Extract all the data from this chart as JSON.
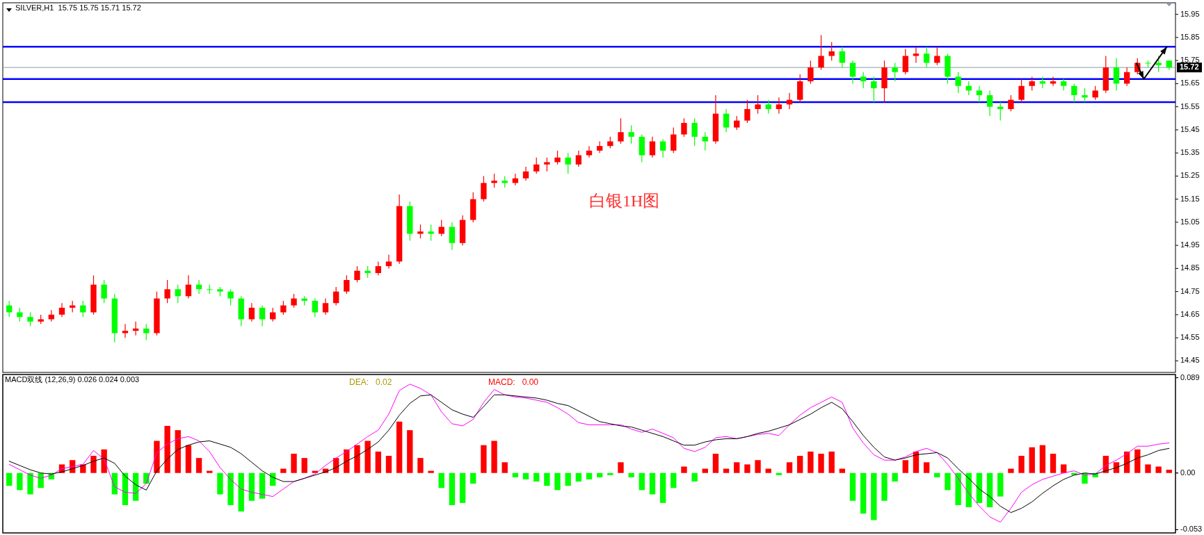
{
  "chart_data": [
    {
      "type": "candlestick",
      "title": "SILVER,H1  15.75 15.75 15.71 15.72",
      "categories": [
        null,
        null,
        null,
        null,
        null,
        null,
        null,
        null,
        null,
        null,
        null,
        null,
        null,
        null,
        null,
        null,
        null,
        null,
        null,
        null,
        null,
        null,
        null,
        null,
        null,
        null,
        null,
        null,
        null,
        null,
        null,
        null,
        null,
        null,
        null,
        null,
        null,
        null,
        null,
        null,
        null,
        null,
        null,
        null,
        null,
        null,
        null,
        null,
        null,
        null,
        null,
        null,
        null,
        null,
        null,
        null,
        null,
        null,
        null,
        null,
        null,
        null,
        null,
        null,
        null,
        null,
        null,
        null,
        null,
        null,
        null,
        null,
        null,
        null,
        null,
        null,
        null,
        null,
        null,
        null,
        null,
        null,
        null,
        null,
        null,
        null,
        null,
        null,
        null,
        null,
        null,
        null,
        null,
        null,
        null,
        null,
        null,
        null,
        null,
        null,
        null,
        null,
        null,
        null,
        null,
        null,
        null,
        null,
        null,
        null,
        null
      ],
      "ohlc": [
        [
          14.69,
          14.71,
          14.64,
          14.66
        ],
        [
          14.66,
          14.68,
          14.62,
          14.64
        ],
        [
          14.64,
          14.66,
          14.6,
          14.62
        ],
        [
          14.62,
          14.65,
          14.61,
          14.63
        ],
        [
          14.63,
          14.67,
          14.62,
          14.65
        ],
        [
          14.65,
          14.7,
          14.64,
          14.68
        ],
        [
          14.68,
          14.71,
          14.66,
          14.69
        ],
        [
          14.69,
          14.71,
          14.64,
          14.66
        ],
        [
          14.66,
          14.82,
          14.65,
          14.78
        ],
        [
          14.78,
          14.8,
          14.7,
          14.72
        ],
        [
          14.72,
          14.74,
          14.53,
          14.57
        ],
        [
          14.57,
          14.61,
          14.55,
          14.58
        ],
        [
          14.58,
          14.62,
          14.56,
          14.59
        ],
        [
          14.59,
          14.61,
          14.54,
          14.57
        ],
        [
          14.57,
          14.75,
          14.56,
          14.72
        ],
        [
          14.72,
          14.8,
          14.7,
          14.76
        ],
        [
          14.76,
          14.78,
          14.7,
          14.73
        ],
        [
          14.73,
          14.82,
          14.72,
          14.78
        ],
        [
          14.78,
          14.8,
          14.74,
          14.76
        ],
        [
          14.76,
          14.78,
          14.74,
          14.76
        ],
        [
          14.76,
          14.77,
          14.73,
          14.75
        ],
        [
          14.75,
          14.76,
          14.69,
          14.72
        ],
        [
          14.72,
          14.73,
          14.6,
          14.63
        ],
        [
          14.63,
          14.7,
          14.62,
          14.68
        ],
        [
          14.68,
          14.69,
          14.6,
          14.63
        ],
        [
          14.63,
          14.68,
          14.62,
          14.66
        ],
        [
          14.66,
          14.71,
          14.65,
          14.69
        ],
        [
          14.69,
          14.74,
          14.68,
          14.72
        ],
        [
          14.72,
          14.73,
          14.69,
          14.71
        ],
        [
          14.71,
          14.72,
          14.64,
          14.66
        ],
        [
          14.66,
          14.72,
          14.65,
          14.7
        ],
        [
          14.7,
          14.77,
          14.69,
          14.75
        ],
        [
          14.75,
          14.82,
          14.74,
          14.8
        ],
        [
          14.8,
          14.86,
          14.79,
          14.84
        ],
        [
          14.84,
          14.86,
          14.81,
          14.83
        ],
        [
          14.83,
          14.88,
          14.82,
          14.86
        ],
        [
          14.86,
          14.91,
          14.85,
          14.88
        ],
        [
          14.88,
          15.17,
          14.87,
          15.12
        ],
        [
          15.12,
          15.14,
          14.97,
          15.0
        ],
        [
          15.0,
          15.04,
          14.98,
          15.01
        ],
        [
          15.01,
          15.04,
          14.97,
          15.0
        ],
        [
          15.0,
          15.06,
          14.99,
          15.03
        ],
        [
          15.03,
          15.05,
          14.93,
          14.96
        ],
        [
          14.96,
          15.08,
          14.95,
          15.06
        ],
        [
          15.06,
          15.18,
          15.05,
          15.15
        ],
        [
          15.15,
          15.25,
          15.14,
          15.22
        ],
        [
          15.22,
          15.26,
          15.2,
          15.23
        ],
        [
          15.23,
          15.25,
          15.2,
          15.22
        ],
        [
          15.22,
          15.26,
          15.21,
          15.24
        ],
        [
          15.24,
          15.29,
          15.23,
          15.27
        ],
        [
          15.27,
          15.33,
          15.26,
          15.3
        ],
        [
          15.3,
          15.33,
          15.27,
          15.31
        ],
        [
          15.31,
          15.36,
          15.3,
          15.33
        ],
        [
          15.33,
          15.35,
          15.26,
          15.3
        ],
        [
          15.3,
          15.36,
          15.29,
          15.34
        ],
        [
          15.34,
          15.38,
          15.33,
          15.36
        ],
        [
          15.36,
          15.4,
          15.35,
          15.38
        ],
        [
          15.38,
          15.42,
          15.37,
          15.4
        ],
        [
          15.4,
          15.5,
          15.39,
          15.44
        ],
        [
          15.44,
          15.47,
          15.39,
          15.42
        ],
        [
          15.42,
          15.43,
          15.31,
          15.34
        ],
        [
          15.34,
          15.42,
          15.33,
          15.4
        ],
        [
          15.4,
          15.41,
          15.33,
          15.36
        ],
        [
          15.36,
          15.46,
          15.35,
          15.43
        ],
        [
          15.43,
          15.5,
          15.42,
          15.48
        ],
        [
          15.48,
          15.5,
          15.38,
          15.42
        ],
        [
          15.42,
          15.44,
          15.36,
          15.4
        ],
        [
          15.4,
          15.6,
          15.39,
          15.52
        ],
        [
          15.52,
          15.54,
          15.44,
          15.46
        ],
        [
          15.46,
          15.51,
          15.45,
          15.49
        ],
        [
          15.49,
          15.58,
          15.48,
          15.54
        ],
        [
          15.54,
          15.6,
          15.52,
          15.56
        ],
        [
          15.56,
          15.58,
          15.52,
          15.54
        ],
        [
          15.54,
          15.59,
          15.52,
          15.56
        ],
        [
          15.56,
          15.61,
          15.54,
          15.58
        ],
        [
          15.58,
          15.69,
          15.57,
          15.66
        ],
        [
          15.66,
          15.75,
          15.65,
          15.72
        ],
        [
          15.72,
          15.86,
          15.71,
          15.77
        ],
        [
          15.77,
          15.83,
          15.75,
          15.79
        ],
        [
          15.79,
          15.81,
          15.72,
          15.74
        ],
        [
          15.74,
          15.75,
          15.65,
          15.68
        ],
        [
          15.68,
          15.7,
          15.63,
          15.66
        ],
        [
          15.66,
          15.68,
          15.57,
          15.63
        ],
        [
          15.63,
          15.75,
          15.57,
          15.72
        ],
        [
          15.72,
          15.74,
          15.66,
          15.7
        ],
        [
          15.7,
          15.8,
          15.69,
          15.77
        ],
        [
          15.77,
          15.81,
          15.74,
          15.78
        ],
        [
          15.78,
          15.81,
          15.72,
          15.74
        ],
        [
          15.74,
          15.81,
          15.73,
          15.77
        ],
        [
          15.77,
          15.78,
          15.65,
          15.68
        ],
        [
          15.68,
          15.7,
          15.61,
          15.64
        ],
        [
          15.64,
          15.66,
          15.6,
          15.62
        ],
        [
          15.62,
          15.64,
          15.57,
          15.6
        ],
        [
          15.6,
          15.62,
          15.51,
          15.55
        ],
        [
          15.55,
          15.57,
          15.49,
          15.54
        ],
        [
          15.54,
          15.6,
          15.53,
          15.58
        ],
        [
          15.58,
          15.67,
          15.57,
          15.64
        ],
        [
          15.64,
          15.68,
          15.62,
          15.66
        ],
        [
          15.66,
          15.68,
          15.63,
          15.65
        ],
        [
          15.65,
          15.68,
          15.64,
          15.66
        ],
        [
          15.66,
          15.67,
          15.62,
          15.64
        ],
        [
          15.64,
          15.65,
          15.57,
          15.6
        ],
        [
          15.6,
          15.63,
          15.57,
          15.59
        ],
        [
          15.59,
          15.64,
          15.58,
          15.62
        ],
        [
          15.62,
          15.77,
          15.61,
          15.72
        ],
        [
          15.72,
          15.76,
          15.62,
          15.65
        ],
        [
          15.65,
          15.72,
          15.64,
          15.7
        ],
        [
          15.7,
          15.76,
          15.69,
          15.74
        ],
        [
          15.74,
          15.75,
          15.72,
          15.74
        ],
        [
          15.74,
          15.77,
          15.7,
          15.73
        ],
        [
          15.75,
          15.75,
          15.71,
          15.72
        ]
      ],
      "colors": [
        "#00ff00",
        "#00ff00",
        "#00ff00",
        "#ff0000",
        "#ff0000",
        "#ff0000",
        "#ff0000",
        "#00ff00",
        "#ff0000",
        "#00ff00",
        "#00ff00",
        "#ff0000",
        "#ff0000",
        "#00ff00",
        "#ff0000",
        "#ff0000",
        "#00ff00",
        "#ff0000",
        "#00ff00",
        "#00ff00",
        "#00ff00",
        "#00ff00",
        "#00ff00",
        "#ff0000",
        "#00ff00",
        "#ff0000",
        "#ff0000",
        "#ff0000",
        "#00ff00",
        "#00ff00",
        "#ff0000",
        "#ff0000",
        "#ff0000",
        "#ff0000",
        "#00ff00",
        "#ff0000",
        "#ff0000",
        "#ff0000",
        "#00ff00",
        "#ff0000",
        "#00ff00",
        "#ff0000",
        "#00ff00",
        "#ff0000",
        "#ff0000",
        "#ff0000",
        "#ff0000",
        "#00ff00",
        "#ff0000",
        "#ff0000",
        "#ff0000",
        "#ff0000",
        "#ff0000",
        "#00ff00",
        "#ff0000",
        "#ff0000",
        "#ff0000",
        "#ff0000",
        "#ff0000",
        "#00ff00",
        "#00ff00",
        "#ff0000",
        "#00ff00",
        "#ff0000",
        "#ff0000",
        "#00ff00",
        "#00ff00",
        "#ff0000",
        "#00ff00",
        "#ff0000",
        "#ff0000",
        "#ff0000",
        "#00ff00",
        "#ff0000",
        "#ff0000",
        "#ff0000",
        "#ff0000",
        "#ff0000",
        "#ff0000",
        "#00ff00",
        "#00ff00",
        "#00ff00",
        "#00ff00",
        "#ff0000",
        "#00ff00",
        "#ff0000",
        "#ff0000",
        "#00ff00",
        "#ff0000",
        "#00ff00",
        "#00ff00",
        "#00ff00",
        "#00ff00",
        "#00ff00",
        "#00ff00",
        "#ff0000",
        "#ff0000",
        "#ff0000",
        "#00ff00",
        "#ff0000",
        "#00ff00",
        "#00ff00",
        "#00ff00",
        "#ff0000",
        "#ff0000",
        "#00ff00",
        "#ff0000",
        "#ff0000",
        "#00ff00",
        "#00ff00",
        "#00ff00"
      ],
      "ylim": [
        14.4,
        16.0
      ],
      "yticks": [
        15.95,
        15.85,
        15.75,
        15.65,
        15.55,
        15.45,
        15.35,
        15.25,
        15.15,
        15.05,
        14.95,
        14.85,
        14.75,
        14.65,
        14.55,
        14.45
      ],
      "ref_lines": [
        {
          "axis": "y",
          "value": 15.81,
          "color": "#0000ff"
        },
        {
          "axis": "y",
          "value": 15.67,
          "color": "#0000ff"
        },
        {
          "axis": "y",
          "value": 15.57,
          "color": "#0000ff"
        },
        {
          "axis": "y",
          "value": 15.72,
          "label": "15.72",
          "color": "#8899aa"
        }
      ],
      "annotations": [
        "白银1H图"
      ],
      "tick_labels": "y"
    },
    {
      "type": "bar",
      "title": "MACD双线 (12,26,9) 0.026 0.024 0.003",
      "categories": [
        null,
        null,
        null,
        null,
        null,
        null,
        null,
        null,
        null,
        null,
        null,
        null,
        null,
        null,
        null,
        null,
        null,
        null,
        null,
        null,
        null,
        null,
        null,
        null,
        null,
        null,
        null,
        null,
        null,
        null,
        null,
        null,
        null,
        null,
        null,
        null,
        null,
        null,
        null,
        null,
        null,
        null,
        null,
        null,
        null,
        null,
        null,
        null,
        null,
        null,
        null,
        null,
        null,
        null,
        null,
        null,
        null,
        null,
        null,
        null,
        null,
        null,
        null,
        null,
        null,
        null,
        null,
        null,
        null,
        null,
        null,
        null,
        null,
        null,
        null,
        null,
        null,
        null,
        null,
        null,
        null,
        null,
        null,
        null,
        null,
        null,
        null,
        null,
        null,
        null,
        null,
        null,
        null,
        null,
        null,
        null,
        null,
        null,
        null,
        null,
        null,
        null,
        null,
        null,
        null,
        null,
        null,
        null,
        null,
        null,
        null
      ],
      "values": [
        -0.012,
        -0.016,
        -0.02,
        -0.014,
        -0.006,
        0.008,
        0.012,
        0.008,
        0.016,
        0.022,
        -0.02,
        -0.03,
        -0.026,
        -0.01,
        0.03,
        0.044,
        0.04,
        0.026,
        0.014,
        0.002,
        -0.02,
        -0.03,
        -0.036,
        -0.026,
        -0.024,
        -0.012,
        0.004,
        0.018,
        0.014,
        0.002,
        0.004,
        0.014,
        0.022,
        0.026,
        0.03,
        0.02,
        0.016,
        0.048,
        0.04,
        0.014,
        0.002,
        -0.014,
        -0.03,
        -0.028,
        -0.01,
        0.026,
        0.03,
        0.01,
        -0.004,
        -0.006,
        -0.008,
        -0.012,
        -0.016,
        -0.012,
        -0.008,
        -0.006,
        -0.004,
        -0.002,
        0.01,
        -0.004,
        -0.016,
        -0.02,
        -0.028,
        -0.014,
        0.006,
        -0.008,
        0.004,
        0.018,
        0.004,
        0.01,
        0.008,
        0.012,
        0.004,
        -0.002,
        0.01,
        0.016,
        0.02,
        0.018,
        0.02,
        0.004,
        -0.026,
        -0.038,
        -0.044,
        -0.026,
        -0.008,
        0.012,
        0.02,
        0.01,
        -0.004,
        -0.016,
        -0.03,
        -0.032,
        -0.028,
        -0.032,
        -0.022,
        0.004,
        0.016,
        0.024,
        0.026,
        0.018,
        0.008,
        -0.002,
        -0.01,
        -0.004,
        0.016,
        0.01,
        0.02,
        0.022,
        0.008,
        0.006,
        0.003
      ],
      "colors": [
        "#00ff00",
        "#00ff00",
        "#00ff00",
        "#00ff00",
        "#00ff00",
        "#ff0000",
        "#ff0000",
        "#ff0000",
        "#ff0000",
        "#ff0000",
        "#00ff00",
        "#00ff00",
        "#00ff00",
        "#00ff00",
        "#ff0000",
        "#ff0000",
        "#ff0000",
        "#ff0000",
        "#ff0000",
        "#ff0000",
        "#00ff00",
        "#00ff00",
        "#00ff00",
        "#00ff00",
        "#00ff00",
        "#00ff00",
        "#ff0000",
        "#ff0000",
        "#ff0000",
        "#ff0000",
        "#ff0000",
        "#ff0000",
        "#ff0000",
        "#ff0000",
        "#ff0000",
        "#ff0000",
        "#ff0000",
        "#ff0000",
        "#ff0000",
        "#ff0000",
        "#ff0000",
        "#00ff00",
        "#00ff00",
        "#00ff00",
        "#00ff00",
        "#ff0000",
        "#ff0000",
        "#ff0000",
        "#00ff00",
        "#00ff00",
        "#00ff00",
        "#00ff00",
        "#00ff00",
        "#00ff00",
        "#00ff00",
        "#00ff00",
        "#00ff00",
        "#00ff00",
        "#ff0000",
        "#00ff00",
        "#00ff00",
        "#00ff00",
        "#00ff00",
        "#00ff00",
        "#ff0000",
        "#00ff00",
        "#ff0000",
        "#ff0000",
        "#ff0000",
        "#ff0000",
        "#ff0000",
        "#ff0000",
        "#ff0000",
        "#00ff00",
        "#ff0000",
        "#ff0000",
        "#ff0000",
        "#ff0000",
        "#ff0000",
        "#ff0000",
        "#00ff00",
        "#00ff00",
        "#00ff00",
        "#00ff00",
        "#00ff00",
        "#ff0000",
        "#ff0000",
        "#ff0000",
        "#00ff00",
        "#00ff00",
        "#00ff00",
        "#00ff00",
        "#00ff00",
        "#00ff00",
        "#00ff00",
        "#ff0000",
        "#ff0000",
        "#ff0000",
        "#ff0000",
        "#ff0000",
        "#ff0000",
        "#00ff00",
        "#00ff00",
        "#00ff00",
        "#ff0000",
        "#ff0000",
        "#ff0000",
        "#ff0000",
        "#ff0000",
        "#ff0000",
        "#ff0000"
      ],
      "ylim": [
        -0.056,
        0.092
      ],
      "yticks": [
        0.089,
        {
          "value": 0,
          "label": "0.00"
        },
        -0.053
      ],
      "annotations": [
        "DEA:   0.02",
        "MACD:   0.00"
      ],
      "tick_labels": "y"
    },
    {
      "type": "line",
      "categories": [
        null,
        null,
        null,
        null,
        null,
        null,
        null,
        null,
        null,
        null,
        null,
        null,
        null,
        null,
        null,
        null,
        null,
        null,
        null,
        null,
        null,
        null,
        null,
        null,
        null,
        null,
        null,
        null,
        null,
        null,
        null,
        null,
        null,
        null,
        null,
        null,
        null,
        null,
        null,
        null,
        null,
        null,
        null,
        null,
        null,
        null,
        null,
        null,
        null,
        null,
        null,
        null,
        null,
        null,
        null,
        null,
        null,
        null,
        null,
        null,
        null,
        null,
        null,
        null,
        null,
        null,
        null,
        null,
        null,
        null,
        null,
        null,
        null,
        null,
        null,
        null,
        null,
        null,
        null,
        null,
        null,
        null,
        null,
        null,
        null,
        null,
        null,
        null,
        null,
        null,
        null,
        null,
        null,
        null,
        null,
        null,
        null,
        null,
        null,
        null,
        null,
        null,
        null,
        null,
        null,
        null,
        null,
        null,
        null,
        null,
        null
      ],
      "series": [
        {
          "color": "#ff00ff",
          "values": [
            0.008,
            0.003,
            -0.002,
            -0.005,
            -0.002,
            0.004,
            0.006,
            0.008,
            0.021,
            0.013,
            -0.013,
            -0.018,
            -0.019,
            -0.01,
            0.019,
            0.027,
            0.032,
            0.034,
            0.03,
            0.02,
            0.005,
            -0.006,
            -0.015,
            -0.018,
            -0.02,
            -0.022,
            -0.015,
            -0.008,
            -0.005,
            -0.001,
            0.007,
            0.014,
            0.02,
            0.027,
            0.034,
            0.04,
            0.055,
            0.077,
            0.083,
            0.079,
            0.073,
            0.057,
            0.046,
            0.044,
            0.05,
            0.066,
            0.078,
            0.073,
            0.071,
            0.07,
            0.068,
            0.066,
            0.061,
            0.055,
            0.047,
            0.045,
            0.045,
            0.045,
            0.045,
            0.041,
            0.038,
            0.041,
            0.037,
            0.033,
            0.023,
            0.02,
            0.024,
            0.033,
            0.034,
            0.032,
            0.034,
            0.036,
            0.037,
            0.035,
            0.045,
            0.054,
            0.061,
            0.066,
            0.071,
            0.066,
            0.042,
            0.028,
            0.017,
            0.012,
            0.012,
            0.015,
            0.02,
            0.023,
            0.019,
            0.008,
            -0.005,
            -0.019,
            -0.031,
            -0.041,
            -0.046,
            -0.033,
            -0.018,
            -0.011,
            -0.006,
            -0.003,
            0.0,
            0.002,
            -0.002,
            -0.001,
            0.007,
            0.012,
            0.018,
            0.025,
            0.025,
            0.027,
            0.028
          ]
        },
        {
          "color": "#000000",
          "values": [
            0.011,
            0.007,
            0.003,
            0.0,
            -0.001,
            0.001,
            0.004,
            0.007,
            0.011,
            0.014,
            0.009,
            -0.003,
            -0.011,
            -0.016,
            0.002,
            0.013,
            0.022,
            0.026,
            0.029,
            0.03,
            0.027,
            0.024,
            0.018,
            0.01,
            0.002,
            -0.004,
            -0.008,
            -0.008,
            -0.005,
            -0.002,
            0.001,
            0.005,
            0.011,
            0.016,
            0.022,
            0.029,
            0.04,
            0.054,
            0.065,
            0.072,
            0.073,
            0.066,
            0.059,
            0.055,
            0.052,
            0.062,
            0.073,
            0.073,
            0.072,
            0.071,
            0.07,
            0.068,
            0.065,
            0.063,
            0.058,
            0.053,
            0.048,
            0.046,
            0.044,
            0.043,
            0.04,
            0.037,
            0.034,
            0.03,
            0.026,
            0.026,
            0.029,
            0.031,
            0.032,
            0.032,
            0.034,
            0.037,
            0.039,
            0.042,
            0.045,
            0.05,
            0.055,
            0.061,
            0.066,
            0.06,
            0.048,
            0.035,
            0.024,
            0.015,
            0.012,
            0.014,
            0.017,
            0.018,
            0.019,
            0.014,
            0.004,
            -0.005,
            -0.015,
            -0.022,
            -0.031,
            -0.037,
            -0.033,
            -0.027,
            -0.019,
            -0.012,
            -0.006,
            -0.002,
            0.0,
            -0.001,
            0.002,
            0.005,
            0.009,
            0.014,
            0.017,
            0.021,
            0.023
          ]
        }
      ],
      "ylim": [
        -0.056,
        0.092
      ],
      "yticks": [
        0.089,
        0,
        -0.053
      ],
      "tick_labels": false
    }
  ]
}
